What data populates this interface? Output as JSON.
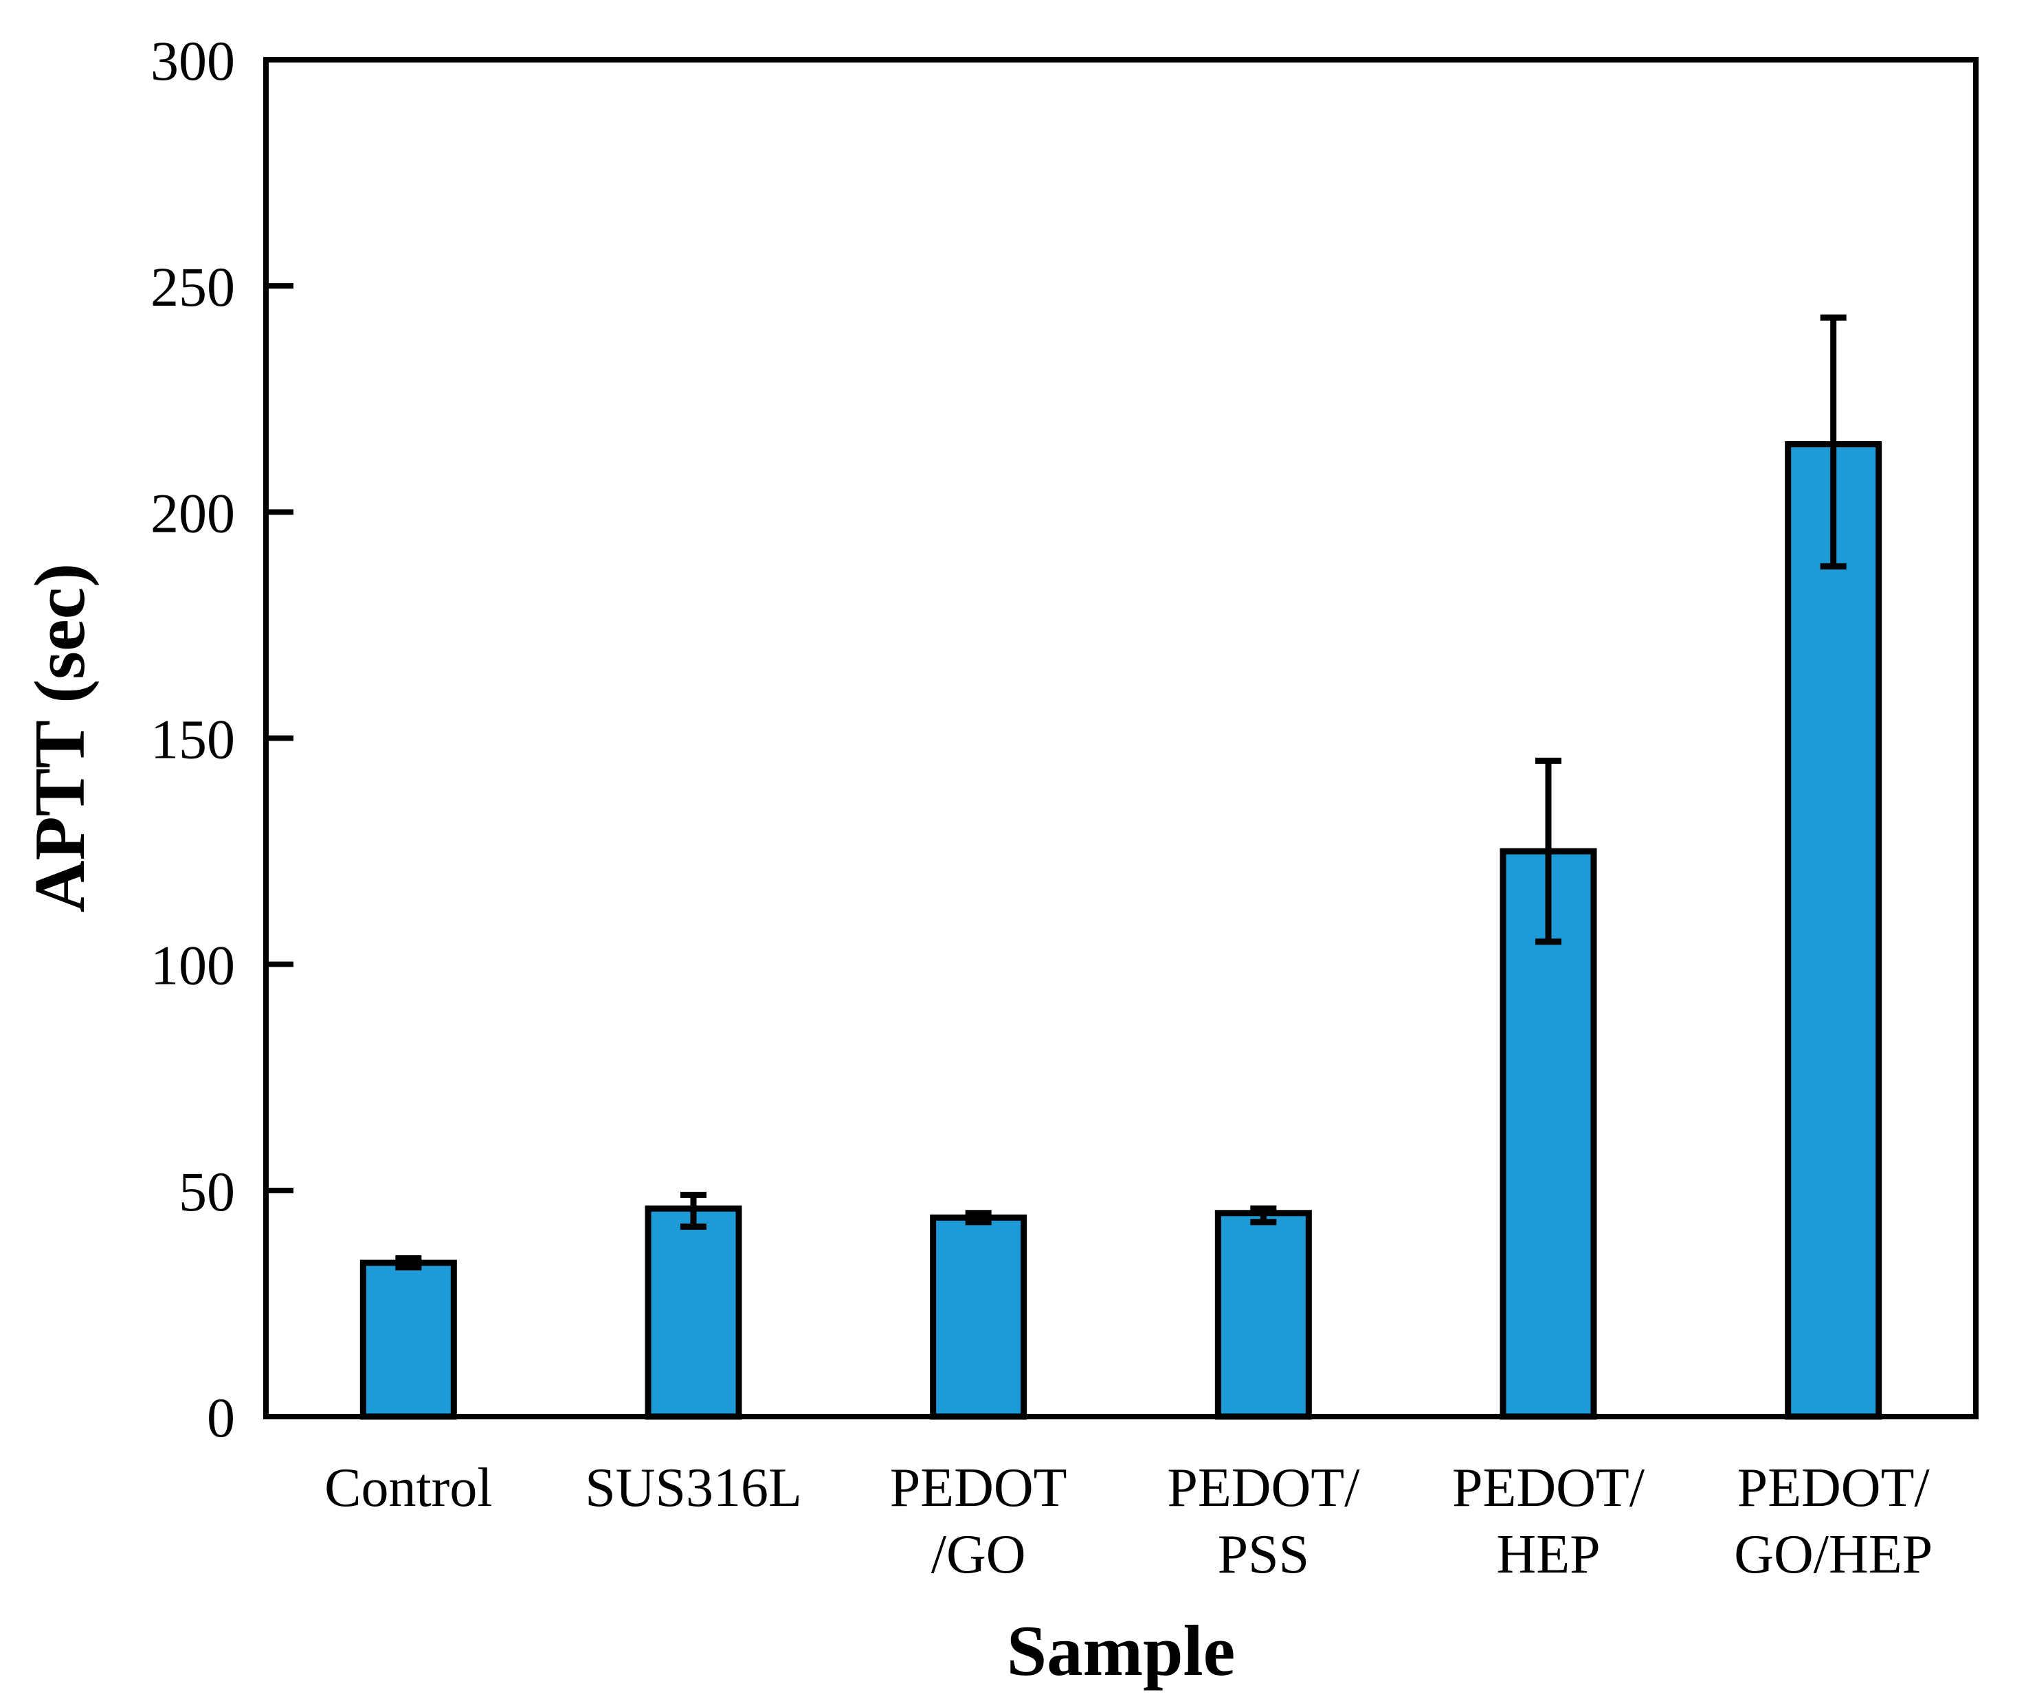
{
  "figure": {
    "background": "#FFFFFF"
  },
  "chart_data": {
    "type": "bar",
    "title": "",
    "xlabel": "Sample",
    "ylabel": "APTT (sec)",
    "categories": [
      "Control",
      "SUS316L",
      "PEDOT/GO",
      "PEDOT/PSS",
      "PEDOT/HEP",
      "PEDOT/GO/HEP"
    ],
    "category_label_lines": [
      [
        "Control"
      ],
      [
        "SUS316L"
      ],
      [
        "PEDOT",
        "/GO"
      ],
      [
        "PEDOT/",
        "PSS"
      ],
      [
        "PEDOT/",
        "HEP"
      ],
      [
        "PEDOT/",
        "GO/HEP"
      ]
    ],
    "values": [
      34,
      46,
      44,
      45,
      125,
      215
    ],
    "error_plus": [
      1,
      3,
      1,
      1,
      20,
      28
    ],
    "error_minus": [
      1,
      4,
      1,
      2,
      20,
      27
    ],
    "ylim": [
      0,
      300
    ],
    "yticks": [
      0,
      50,
      100,
      150,
      200,
      250,
      300
    ],
    "grid": false,
    "legend": null,
    "bar_color": "#1E9BD7",
    "bar_outline_color": "#000000",
    "axis_color": "#000000",
    "error_bar_color": "#000000"
  }
}
